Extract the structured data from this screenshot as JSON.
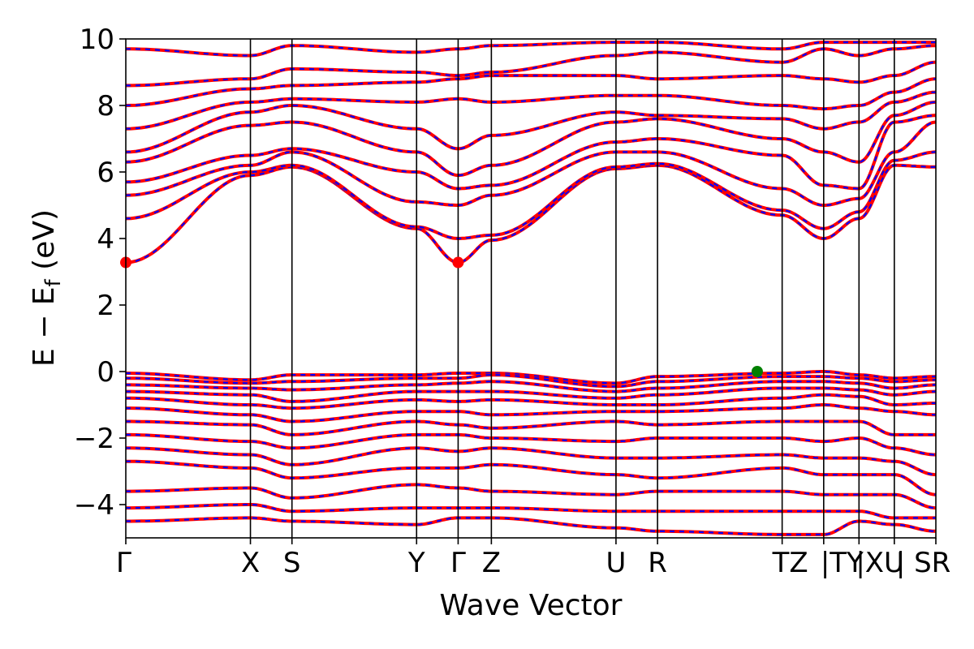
{
  "chart_data": {
    "type": "line",
    "title": "",
    "xlabel": "Wave Vector",
    "ylabel": "E − Ef (eV)",
    "ylabel_main": "E − E",
    "ylabel_sub": "f",
    "ylabel_unit": " (eV)",
    "ylim": [
      -5,
      10
    ],
    "yticks": [
      -4,
      -2,
      0,
      2,
      4,
      6,
      8,
      10
    ],
    "ytick_labels": [
      "−4",
      "−2",
      "0",
      "2",
      "4",
      "6",
      "8",
      "10"
    ],
    "kpath_labels": [
      "Γ",
      "X",
      "S",
      "Y",
      "Γ",
      "Z",
      "U",
      "R",
      "T",
      "Z",
      "|Y",
      "T",
      "|X",
      "U",
      "| S",
      "R"
    ],
    "kpath_label_text": [
      "Γ",
      "X",
      "S",
      "Y",
      "Γ",
      "Z",
      "U",
      "R",
      "TZ",
      "|TY",
      "|XU",
      "| SR"
    ],
    "kpoints": [
      0,
      3.0,
      4.0,
      7.0,
      8.0,
      8.8,
      11.8,
      12.8,
      15.8,
      16.8,
      17.65,
      18.5,
      19.5
    ],
    "kpoint_names": [
      "Γ",
      "X",
      "S",
      "Y",
      "Γ",
      "Z",
      "U",
      "R",
      "T/Z",
      "|Y/T",
      "|X/U",
      "| S/R",
      "R"
    ],
    "band_colors": [
      "#ff0000",
      "#0000ff"
    ],
    "series": [
      {
        "values_at_kpoints": [
          3.28,
          5.9,
          6.15,
          4.3,
          3.28,
          3.95,
          6.1,
          6.2,
          4.7,
          4.0,
          4.6,
          6.2,
          6.15
        ]
      },
      {
        "values_at_kpoints": [
          4.6,
          6.0,
          6.2,
          4.35,
          4.0,
          4.1,
          6.15,
          6.25,
          4.85,
          4.3,
          4.8,
          6.35,
          6.6
        ]
      },
      {
        "values_at_kpoints": [
          5.3,
          6.2,
          6.6,
          5.1,
          5.0,
          5.3,
          6.6,
          6.6,
          5.5,
          5.0,
          5.2,
          6.6,
          7.5
        ]
      },
      {
        "values_at_kpoints": [
          5.7,
          6.5,
          6.7,
          6.0,
          5.5,
          5.6,
          6.9,
          7.0,
          6.5,
          5.6,
          5.5,
          7.5,
          7.7
        ]
      },
      {
        "values_at_kpoints": [
          6.3,
          7.4,
          7.5,
          6.6,
          5.9,
          6.2,
          7.5,
          7.6,
          7.0,
          6.6,
          6.3,
          7.7,
          8.1
        ]
      },
      {
        "values_at_kpoints": [
          6.6,
          7.8,
          8.0,
          7.3,
          6.7,
          7.1,
          7.8,
          7.7,
          7.6,
          7.3,
          7.5,
          8.1,
          8.4
        ]
      },
      {
        "values_at_kpoints": [
          7.3,
          8.1,
          8.2,
          8.1,
          8.2,
          8.1,
          8.3,
          8.3,
          8.0,
          7.9,
          8.0,
          8.4,
          8.8
        ]
      },
      {
        "values_at_kpoints": [
          8.0,
          8.5,
          8.6,
          8.7,
          8.8,
          8.9,
          8.9,
          8.8,
          8.9,
          8.8,
          8.7,
          8.9,
          9.3
        ]
      },
      {
        "values_at_kpoints": [
          8.6,
          8.8,
          9.1,
          9.0,
          8.9,
          9.0,
          9.5,
          9.6,
          9.3,
          9.7,
          9.5,
          9.7,
          9.8
        ]
      },
      {
        "values_at_kpoints": [
          9.7,
          9.5,
          9.8,
          9.6,
          9.7,
          9.8,
          9.9,
          9.9,
          9.7,
          9.9,
          9.9,
          9.9,
          9.9
        ]
      },
      {
        "values_at_kpoints": [
          -0.05,
          -0.25,
          -0.1,
          -0.1,
          -0.05,
          -0.05,
          -0.35,
          -0.15,
          -0.05,
          0.0,
          -0.1,
          -0.2,
          -0.15
        ]
      },
      {
        "values_at_kpoints": [
          -0.2,
          -0.35,
          -0.3,
          -0.2,
          -0.2,
          -0.1,
          -0.45,
          -0.3,
          -0.15,
          -0.15,
          -0.2,
          -0.3,
          -0.25
        ]
      },
      {
        "values_at_kpoints": [
          -0.4,
          -0.5,
          -0.55,
          -0.4,
          -0.35,
          -0.3,
          -0.6,
          -0.5,
          -0.3,
          -0.3,
          -0.35,
          -0.5,
          -0.4
        ]
      },
      {
        "values_at_kpoints": [
          -0.6,
          -0.7,
          -0.9,
          -0.6,
          -0.6,
          -0.6,
          -0.8,
          -0.7,
          -0.5,
          -0.5,
          -0.55,
          -0.7,
          -0.6
        ]
      },
      {
        "values_at_kpoints": [
          -0.8,
          -1.0,
          -1.1,
          -0.85,
          -0.9,
          -0.85,
          -1.0,
          -1.0,
          -0.8,
          -0.7,
          -0.75,
          -1.0,
          -0.95
        ]
      },
      {
        "values_at_kpoints": [
          -1.1,
          -1.3,
          -1.5,
          -1.2,
          -1.2,
          -1.3,
          -1.2,
          -1.2,
          -1.1,
          -1.0,
          -1.1,
          -1.2,
          -1.3
        ]
      },
      {
        "values_at_kpoints": [
          -1.5,
          -1.6,
          -1.9,
          -1.5,
          -1.6,
          -1.7,
          -1.5,
          -1.6,
          -1.5,
          -1.5,
          -1.5,
          -1.9,
          -1.9
        ]
      },
      {
        "values_at_kpoints": [
          -1.9,
          -2.1,
          -2.3,
          -1.9,
          -1.9,
          -2.0,
          -2.1,
          -2.0,
          -2.0,
          -2.1,
          -2.0,
          -2.3,
          -2.5
        ]
      },
      {
        "values_at_kpoints": [
          -2.3,
          -2.5,
          -2.8,
          -2.3,
          -2.4,
          -2.3,
          -2.6,
          -2.6,
          -2.5,
          -2.6,
          -2.6,
          -2.7,
          -3.1
        ]
      },
      {
        "values_at_kpoints": [
          -2.7,
          -2.9,
          -3.2,
          -2.9,
          -2.9,
          -2.8,
          -3.1,
          -3.2,
          -2.9,
          -3.1,
          -3.1,
          -3.1,
          -3.7
        ]
      },
      {
        "values_at_kpoints": [
          -3.6,
          -3.5,
          -3.8,
          -3.4,
          -3.5,
          -3.6,
          -3.7,
          -3.6,
          -3.6,
          -3.7,
          -3.7,
          -3.7,
          -4.1
        ]
      },
      {
        "values_at_kpoints": [
          -4.1,
          -4.0,
          -4.2,
          -4.1,
          -4.1,
          -4.1,
          -4.2,
          -4.2,
          -4.2,
          -4.2,
          -4.2,
          -4.4,
          -4.4
        ]
      },
      {
        "values_at_kpoints": [
          -4.5,
          -4.4,
          -4.5,
          -4.6,
          -4.4,
          -4.4,
          -4.7,
          -4.8,
          -4.9,
          -4.9,
          -4.5,
          -4.6,
          -4.8
        ]
      }
    ],
    "markers": [
      {
        "label": "CBM",
        "x": 0,
        "y": 3.28,
        "color": "#ff0000"
      },
      {
        "label": "CBM",
        "x": 8.0,
        "y": 3.28,
        "color": "#ff0000"
      },
      {
        "label": "VBM",
        "x": 15.2,
        "y": 0.0,
        "color": "#008000"
      }
    ],
    "grid": false,
    "legend": "none"
  }
}
